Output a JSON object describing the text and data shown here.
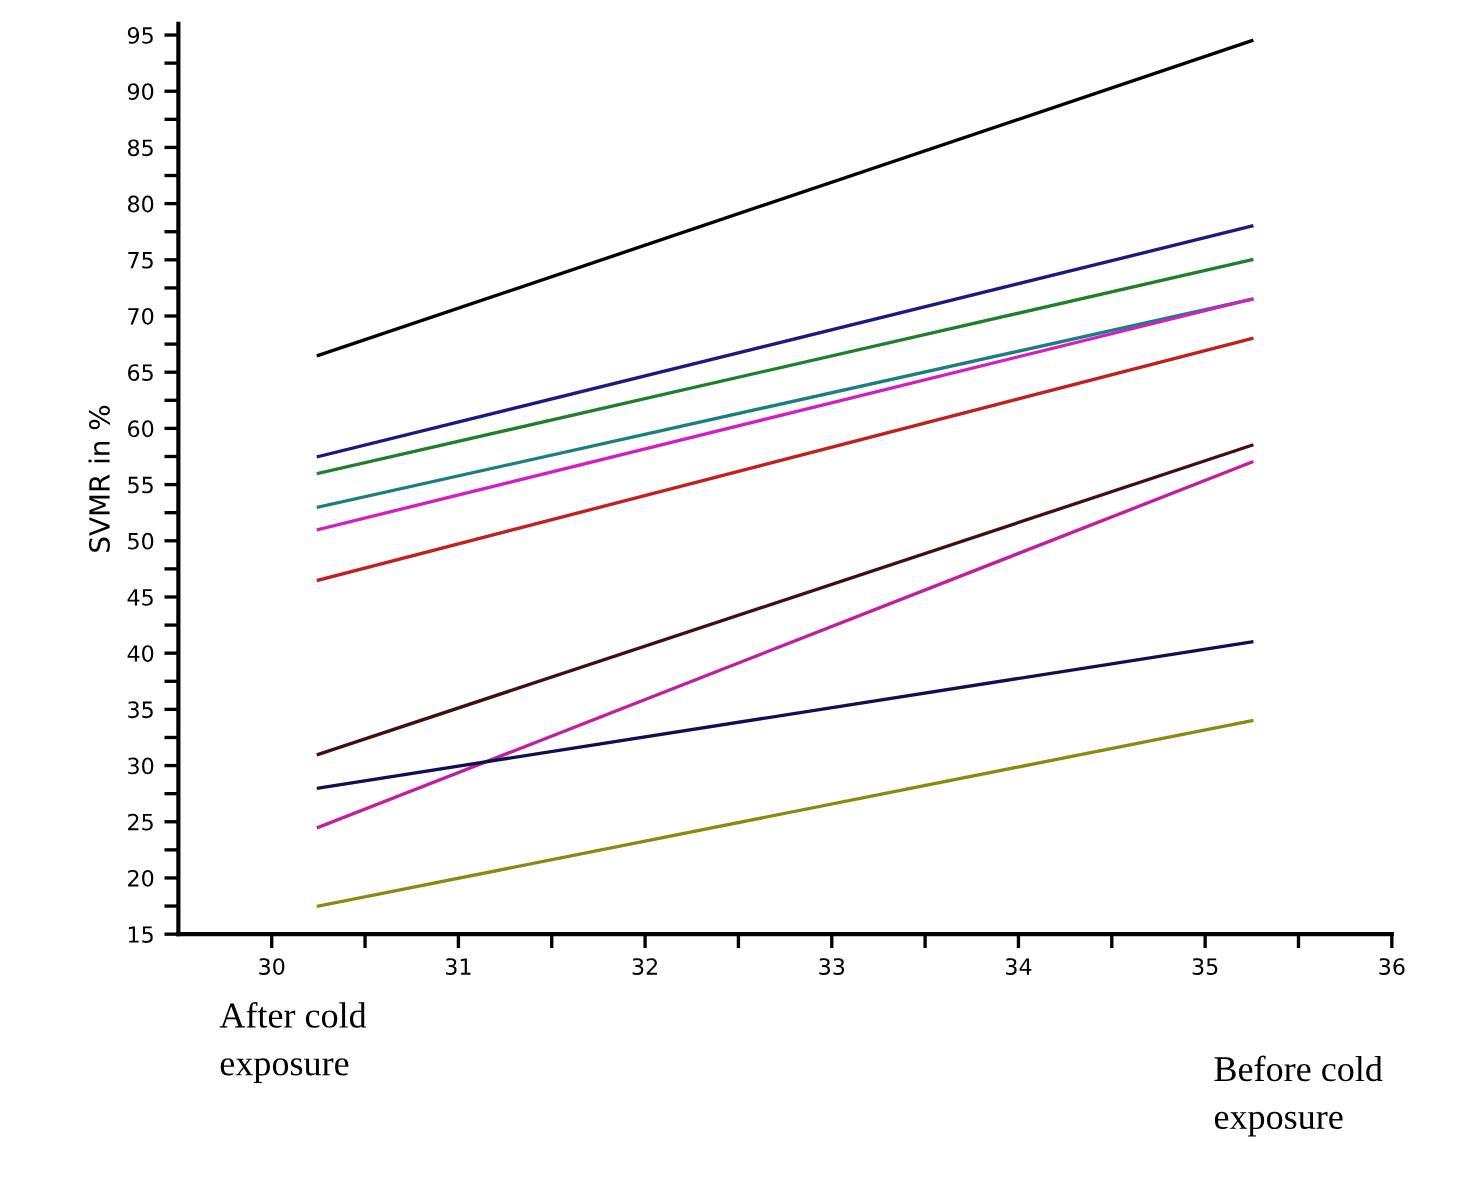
{
  "chart_data": {
    "type": "line",
    "ylabel": "SVMR in %",
    "x": [
      30.25,
      35.25
    ],
    "xlim": [
      29.5,
      36
    ],
    "ylim": [
      15,
      96
    ],
    "xticks": [
      30,
      {
        "value": 30.5,
        "label": null
      },
      31,
      {
        "value": 31.5,
        "label": null
      },
      32,
      {
        "value": 32.5,
        "label": null
      },
      33,
      {
        "value": 33.5,
        "label": null
      },
      34,
      {
        "value": 34.5,
        "label": null
      },
      35,
      {
        "value": 35.5,
        "label": null
      },
      36
    ],
    "yticks": [
      15,
      {
        "value": 17.5,
        "label": null
      },
      20,
      {
        "value": 22.5,
        "label": null
      },
      25,
      {
        "value": 27.5,
        "label": null
      },
      30,
      {
        "value": 32.5,
        "label": null
      },
      35,
      {
        "value": 37.5,
        "label": null
      },
      40,
      {
        "value": 42.5,
        "label": null
      },
      45,
      {
        "value": 47.5,
        "label": null
      },
      50,
      {
        "value": 52.5,
        "label": null
      },
      55,
      {
        "value": 57.5,
        "label": null
      },
      60,
      {
        "value": 62.5,
        "label": null
      },
      65,
      {
        "value": 67.5,
        "label": null
      },
      70,
      {
        "value": 72.5,
        "label": null
      },
      75,
      {
        "value": 77.5,
        "label": null
      },
      80,
      {
        "value": 82.5,
        "label": null
      },
      85,
      {
        "value": 87.5,
        "label": null
      },
      90,
      {
        "value": 92.5,
        "label": null
      },
      95
    ],
    "grid": false,
    "legend": false,
    "marker": "none",
    "line_style": "solid",
    "series": [
      {
        "color": "#000000",
        "values": [
          66.5,
          94.5
        ]
      },
      {
        "color": "#1a1a80",
        "values": [
          57.5,
          78
        ]
      },
      {
        "color": "#1f7f2a",
        "values": [
          56,
          75
        ]
      },
      {
        "color": "#1a7f80",
        "values": [
          53,
          71.5
        ]
      },
      {
        "color": "#d020c0",
        "values": [
          51,
          71.5
        ]
      },
      {
        "color": "#c02020",
        "values": [
          46.5,
          68
        ]
      },
      {
        "color": "#401010",
        "values": [
          31,
          58.5
        ]
      },
      {
        "color": "#c020a0",
        "values": [
          24.5,
          57
        ]
      },
      {
        "color": "#101050",
        "values": [
          28,
          41
        ]
      },
      {
        "color": "#8a8a10",
        "values": [
          17.5,
          34
        ]
      }
    ],
    "annotations": [
      "After cold\nexposure",
      "Before cold\nexposure"
    ]
  }
}
